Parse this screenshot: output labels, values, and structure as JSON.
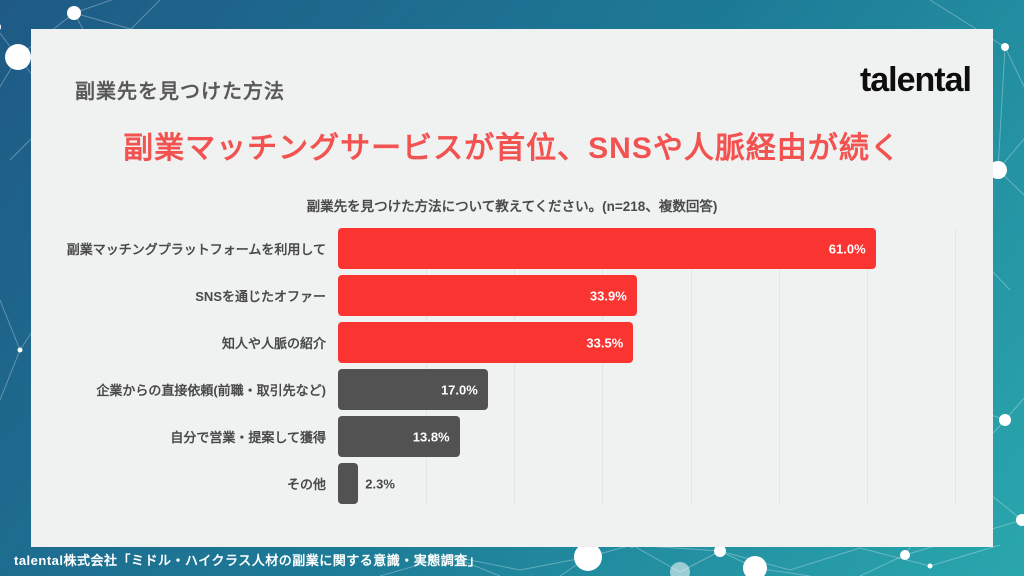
{
  "slide": {
    "title": "副業先を見つけた方法",
    "logo": "talental",
    "headline": "副業マッチングサービスが首位、SNSや人脈経由が続く",
    "source": "talental株式会社「ミドル・ハイクラス人材の副業に関する意識・実態調査」"
  },
  "chart_data": {
    "type": "bar",
    "orientation": "horizontal",
    "title": "副業先を見つけた方法について教えてください。(n=218、複数回答)",
    "categories": [
      "副業マッチングプラットフォームを利用して",
      "SNSを通じたオファー",
      "知人や人脈の紹介",
      "企業からの直接依頼(前職・取引先など)",
      "自分で営業・提案して獲得",
      "その他"
    ],
    "values": [
      61.0,
      33.9,
      33.5,
      17.0,
      13.8,
      2.3
    ],
    "value_labels": [
      "61.0%",
      "33.9%",
      "33.5%",
      "17.0%",
      "13.8%",
      "2.3%"
    ],
    "series_colors": [
      "#fa3431",
      "#fa3431",
      "#fa3431",
      "#525252",
      "#525252",
      "#525252"
    ],
    "xlim": [
      0,
      70
    ],
    "gridline_step": 10,
    "grid": true,
    "legend": false,
    "outside_label_threshold": 5
  },
  "colors": {
    "background_gradient_start": "#1e5a85",
    "background_gradient_end": "#2aa7ad",
    "card_background": "#f0f2f2",
    "headline_red": "#f25350",
    "bar_red": "#fa3431",
    "bar_gray": "#525252",
    "text_dark": "#4a4a4a"
  }
}
